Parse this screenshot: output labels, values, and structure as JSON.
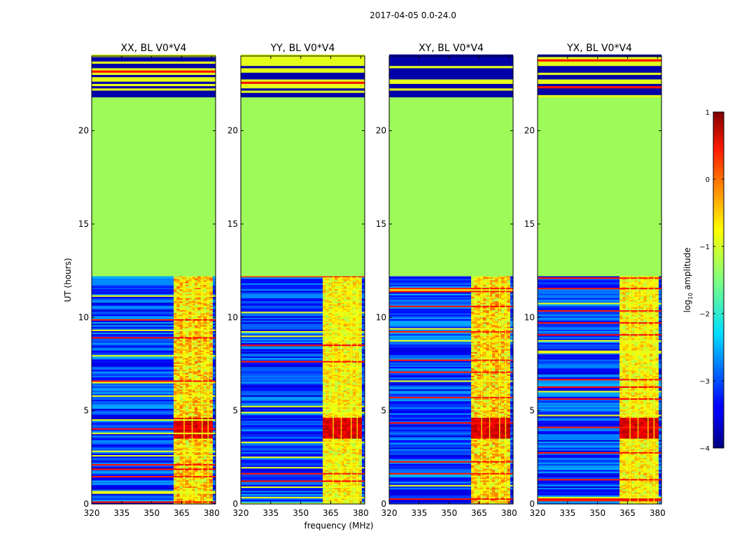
{
  "chart_data": {
    "type": "heatmap",
    "title": "2017-04-05 0.0-24.0",
    "xlabel": "frequency (MHz)",
    "ylabel": "UT (hours)",
    "xlim": [
      320,
      382
    ],
    "ylim": [
      0,
      24
    ],
    "x_ticks": [
      320,
      335,
      350,
      365,
      380
    ],
    "y_ticks": [
      0,
      5,
      10,
      15,
      20
    ],
    "colorbar": {
      "label": "log10 amplitude",
      "label_main": "log",
      "label_sub": "10",
      "label_tail": " amplitude",
      "range": [
        -4,
        1
      ],
      "ticks": [
        "−4",
        "−3",
        "−2",
        "−1",
        "0",
        "1"
      ],
      "tick_values": [
        -4,
        -3,
        -2,
        -1,
        0,
        1
      ]
    },
    "panels": [
      {
        "title": "XX, BL V0*V4"
      },
      {
        "title": "YY, BL V0*V4"
      },
      {
        "title": "XY, BL V0*V4"
      },
      {
        "title": "YX, BL V0*V4"
      }
    ],
    "structure": {
      "flagged_block_hours": [
        12.2,
        21.8
      ],
      "flagged_block_value": -1,
      "rfi_band_mhz": [
        361,
        380
      ],
      "background_value": -3.5
    }
  },
  "colors": {
    "flagged": "#9dfb59",
    "low": "#0000c8",
    "mid": "#3fa0ff",
    "high": "#ff7f00",
    "peak": "#b40000"
  }
}
